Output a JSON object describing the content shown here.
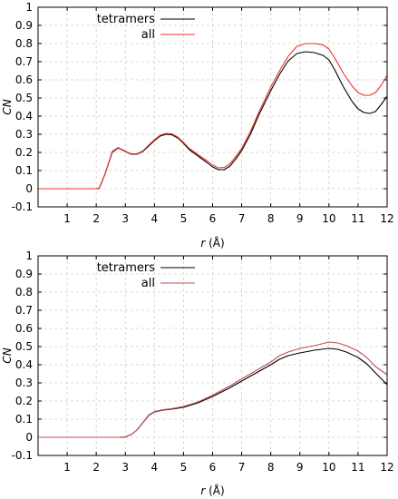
{
  "chart_data": [
    {
      "type": "line",
      "xlabel_var": "r",
      "xlabel_unit": "(Å)",
      "ylabel": "CN",
      "xlim": [
        0,
        12
      ],
      "ylim": [
        -0.1,
        1
      ],
      "xticks": [
        "1",
        "2",
        "3",
        "4",
        "5",
        "6",
        "7",
        "8",
        "9",
        "10",
        "11",
        "12"
      ],
      "yticks": [
        "-0.1",
        "0",
        "0.1",
        "0.2",
        "0.3",
        "0.4",
        "0.5",
        "0.6",
        "0.7",
        "0.8",
        "0.9",
        "1"
      ],
      "grid": true,
      "legend_position": "top-left",
      "series": [
        {
          "name": "tetramers",
          "color": "#000000",
          "points": [
            [
              0,
              0
            ],
            [
              1,
              0
            ],
            [
              1.5,
              0
            ],
            [
              2,
              0
            ],
            [
              2.1,
              0.002
            ],
            [
              2.3,
              0.08
            ],
            [
              2.55,
              0.2
            ],
            [
              2.75,
              0.225
            ],
            [
              3,
              0.205
            ],
            [
              3.2,
              0.19
            ],
            [
              3.4,
              0.19
            ],
            [
              3.6,
              0.205
            ],
            [
              3.8,
              0.235
            ],
            [
              4,
              0.265
            ],
            [
              4.2,
              0.29
            ],
            [
              4.4,
              0.3
            ],
            [
              4.6,
              0.297
            ],
            [
              4.8,
              0.28
            ],
            [
              5,
              0.25
            ],
            [
              5.2,
              0.215
            ],
            [
              5.5,
              0.18
            ],
            [
              5.8,
              0.145
            ],
            [
              6,
              0.12
            ],
            [
              6.2,
              0.105
            ],
            [
              6.4,
              0.105
            ],
            [
              6.6,
              0.125
            ],
            [
              6.8,
              0.165
            ],
            [
              7,
              0.21
            ],
            [
              7.3,
              0.3
            ],
            [
              7.6,
              0.41
            ],
            [
              8,
              0.54
            ],
            [
              8.3,
              0.63
            ],
            [
              8.6,
              0.705
            ],
            [
              8.9,
              0.745
            ],
            [
              9.2,
              0.755
            ],
            [
              9.5,
              0.75
            ],
            [
              9.8,
              0.735
            ],
            [
              10,
              0.71
            ],
            [
              10.2,
              0.655
            ],
            [
              10.5,
              0.56
            ],
            [
              10.8,
              0.48
            ],
            [
              11,
              0.44
            ],
            [
              11.2,
              0.42
            ],
            [
              11.4,
              0.415
            ],
            [
              11.6,
              0.425
            ],
            [
              11.8,
              0.465
            ],
            [
              12,
              0.51
            ]
          ]
        },
        {
          "name": "all",
          "color": "#e8332a",
          "points": [
            [
              0,
              0
            ],
            [
              1,
              0
            ],
            [
              1.5,
              0
            ],
            [
              2,
              0
            ],
            [
              2.1,
              0.002
            ],
            [
              2.3,
              0.08
            ],
            [
              2.55,
              0.205
            ],
            [
              2.75,
              0.227
            ],
            [
              3,
              0.207
            ],
            [
              3.2,
              0.192
            ],
            [
              3.4,
              0.192
            ],
            [
              3.6,
              0.208
            ],
            [
              3.8,
              0.24
            ],
            [
              4,
              0.27
            ],
            [
              4.2,
              0.295
            ],
            [
              4.4,
              0.305
            ],
            [
              4.6,
              0.302
            ],
            [
              4.8,
              0.285
            ],
            [
              5,
              0.255
            ],
            [
              5.2,
              0.222
            ],
            [
              5.5,
              0.188
            ],
            [
              5.8,
              0.155
            ],
            [
              6,
              0.13
            ],
            [
              6.2,
              0.115
            ],
            [
              6.4,
              0.117
            ],
            [
              6.6,
              0.138
            ],
            [
              6.8,
              0.178
            ],
            [
              7,
              0.222
            ],
            [
              7.3,
              0.315
            ],
            [
              7.6,
              0.425
            ],
            [
              8,
              0.56
            ],
            [
              8.3,
              0.65
            ],
            [
              8.6,
              0.73
            ],
            [
              8.9,
              0.785
            ],
            [
              9.2,
              0.8
            ],
            [
              9.5,
              0.8
            ],
            [
              9.8,
              0.792
            ],
            [
              10,
              0.77
            ],
            [
              10.2,
              0.72
            ],
            [
              10.5,
              0.635
            ],
            [
              10.8,
              0.565
            ],
            [
              11,
              0.53
            ],
            [
              11.2,
              0.515
            ],
            [
              11.4,
              0.515
            ],
            [
              11.6,
              0.53
            ],
            [
              11.8,
              0.57
            ],
            [
              12,
              0.625
            ]
          ]
        }
      ]
    },
    {
      "type": "line",
      "xlabel_var": "r",
      "xlabel_unit": "(Å)",
      "ylabel": "CN",
      "xlim": [
        0,
        12
      ],
      "ylim": [
        -0.1,
        1
      ],
      "xticks": [
        "1",
        "2",
        "3",
        "4",
        "5",
        "6",
        "7",
        "8",
        "9",
        "10",
        "11",
        "12"
      ],
      "yticks": [
        "-0.1",
        "0",
        "0.1",
        "0.2",
        "0.3",
        "0.4",
        "0.5",
        "0.6",
        "0.7",
        "0.8",
        "0.9",
        "1"
      ],
      "grid": true,
      "legend_position": "top-left",
      "series": [
        {
          "name": "tetramers",
          "color": "#000000",
          "points": [
            [
              0,
              0
            ],
            [
              1,
              0
            ],
            [
              2,
              0
            ],
            [
              2.8,
              0
            ],
            [
              3,
              0.002
            ],
            [
              3.2,
              0.015
            ],
            [
              3.4,
              0.04
            ],
            [
              3.6,
              0.08
            ],
            [
              3.8,
              0.12
            ],
            [
              4,
              0.14
            ],
            [
              4.3,
              0.15
            ],
            [
              4.6,
              0.155
            ],
            [
              5,
              0.165
            ],
            [
              5.5,
              0.19
            ],
            [
              6,
              0.225
            ],
            [
              6.5,
              0.265
            ],
            [
              7,
              0.31
            ],
            [
              7.5,
              0.355
            ],
            [
              8,
              0.4
            ],
            [
              8.3,
              0.43
            ],
            [
              8.6,
              0.45
            ],
            [
              9,
              0.465
            ],
            [
              9.5,
              0.48
            ],
            [
              10,
              0.49
            ],
            [
              10.3,
              0.485
            ],
            [
              10.6,
              0.47
            ],
            [
              11,
              0.44
            ],
            [
              11.3,
              0.405
            ],
            [
              11.6,
              0.355
            ],
            [
              12,
              0.29
            ]
          ]
        },
        {
          "name": "all",
          "color": "#c0504d",
          "points": [
            [
              0,
              0
            ],
            [
              1,
              0
            ],
            [
              2,
              0
            ],
            [
              2.8,
              0
            ],
            [
              3,
              0.002
            ],
            [
              3.2,
              0.015
            ],
            [
              3.4,
              0.04
            ],
            [
              3.6,
              0.08
            ],
            [
              3.8,
              0.122
            ],
            [
              4,
              0.142
            ],
            [
              4.3,
              0.152
            ],
            [
              4.6,
              0.158
            ],
            [
              5,
              0.17
            ],
            [
              5.5,
              0.195
            ],
            [
              6,
              0.232
            ],
            [
              6.5,
              0.275
            ],
            [
              7,
              0.322
            ],
            [
              7.5,
              0.368
            ],
            [
              8,
              0.415
            ],
            [
              8.3,
              0.45
            ],
            [
              8.6,
              0.47
            ],
            [
              9,
              0.49
            ],
            [
              9.5,
              0.505
            ],
            [
              10,
              0.525
            ],
            [
              10.3,
              0.52
            ],
            [
              10.6,
              0.505
            ],
            [
              11,
              0.475
            ],
            [
              11.3,
              0.44
            ],
            [
              11.6,
              0.39
            ],
            [
              12,
              0.345
            ]
          ]
        }
      ]
    }
  ]
}
